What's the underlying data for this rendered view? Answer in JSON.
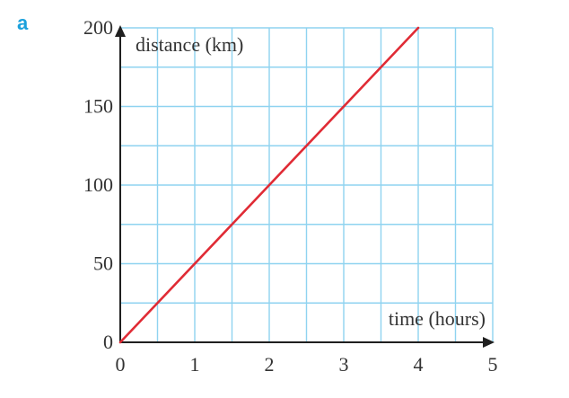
{
  "figure": {
    "part_label": "a"
  },
  "colors": {
    "grid": "#8fd3f0",
    "axis": "#1f1f1f",
    "line": "#e02b35",
    "part_label": "#1ba1dc"
  },
  "chart_data": {
    "type": "line",
    "title": "",
    "xlabel": "time (hours)",
    "ylabel": "distance (km)",
    "xlim": [
      0,
      5
    ],
    "ylim": [
      0,
      200
    ],
    "xticks": [
      0,
      1,
      2,
      3,
      4,
      5
    ],
    "yticks": [
      0,
      50,
      100,
      150,
      200
    ],
    "x_minor_step": 0.5,
    "y_minor_step": 25,
    "grid": true,
    "series": [
      {
        "x": [
          0,
          4
        ],
        "y": [
          0,
          200
        ]
      }
    ]
  }
}
